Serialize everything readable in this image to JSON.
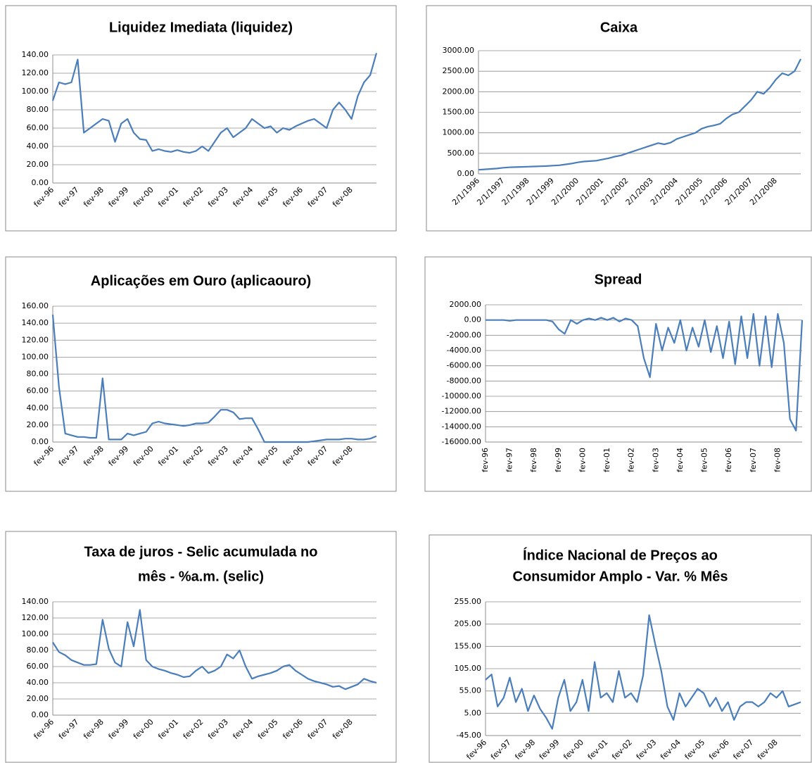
{
  "chart_data": [
    {
      "type": "line",
      "title": [
        "Liquidez Imediata (liquidez)"
      ],
      "categories": [
        "fev-96",
        null,
        null,
        null,
        "fev-97",
        null,
        null,
        null,
        "fev-98",
        null,
        null,
        null,
        "fev-99",
        null,
        null,
        null,
        "fev-00",
        null,
        null,
        null,
        "fev-01",
        null,
        null,
        null,
        "fev-02",
        null,
        null,
        null,
        "fev-03",
        null,
        null,
        null,
        "fev-04",
        null,
        null,
        null,
        "fev-05",
        null,
        null,
        null,
        "fev-06",
        null,
        null,
        null,
        "fev-07",
        null,
        null,
        null,
        "fev-08",
        null,
        null,
        null,
        null
      ],
      "values": [
        90,
        110,
        108,
        110,
        135,
        55,
        60,
        65,
        70,
        68,
        45,
        65,
        70,
        55,
        48,
        47,
        35,
        37,
        35,
        34,
        36,
        34,
        33,
        35,
        40,
        35,
        45,
        55,
        60,
        50,
        55,
        60,
        70,
        65,
        60,
        62,
        55,
        60,
        58,
        62,
        65,
        68,
        70,
        65,
        60,
        80,
        88,
        80,
        70,
        95,
        110,
        118,
        142
      ],
      "color": "#4a7ebb",
      "grid": true,
      "ylim": [
        0,
        140
      ],
      "yticks": [
        {
          "value": 0,
          "label": "0.00"
        },
        {
          "value": 20,
          "label": "20.00"
        },
        {
          "value": 40,
          "label": "40.00"
        },
        {
          "value": 60,
          "label": "60.00"
        },
        {
          "value": 80,
          "label": "80.00"
        },
        {
          "value": 100,
          "label": "100.00"
        },
        {
          "value": 120,
          "label": "120.00"
        },
        {
          "value": 140,
          "label": "140.00"
        }
      ]
    },
    {
      "type": "line",
      "title": [
        "Caixa"
      ],
      "categories": [
        "2/1/1996",
        null,
        null,
        null,
        "2/1/1997",
        null,
        null,
        null,
        "2/1/1998",
        null,
        null,
        null,
        "2/1/1999",
        null,
        null,
        null,
        "2/1/2000",
        null,
        null,
        null,
        "2/1/2001",
        null,
        null,
        null,
        "2/1/2002",
        null,
        null,
        null,
        "2/1/2003",
        null,
        null,
        null,
        "2/1/2004",
        null,
        null,
        null,
        "2/1/2005",
        null,
        null,
        null,
        "2/1/2006",
        null,
        null,
        null,
        "2/1/2007",
        null,
        null,
        null,
        "2/1/2008",
        null,
        null,
        null,
        null
      ],
      "values": [
        100,
        110,
        120,
        130,
        150,
        160,
        165,
        170,
        175,
        180,
        185,
        190,
        200,
        210,
        230,
        250,
        280,
        300,
        310,
        320,
        350,
        380,
        420,
        450,
        500,
        550,
        600,
        650,
        700,
        750,
        720,
        760,
        850,
        900,
        950,
        1000,
        1100,
        1150,
        1180,
        1220,
        1350,
        1450,
        1500,
        1650,
        1800,
        2000,
        1950,
        2100,
        2300,
        2450,
        2400,
        2500,
        2800
      ],
      "color": "#4a7ebb",
      "grid": true,
      "ylim": [
        0,
        3000
      ],
      "yticks": [
        {
          "value": 0,
          "label": "0.00"
        },
        {
          "value": 500,
          "label": "500.00"
        },
        {
          "value": 1000,
          "label": "1000.00"
        },
        {
          "value": 1500,
          "label": "1500.00"
        },
        {
          "value": 2000,
          "label": "2000.00"
        },
        {
          "value": 2500,
          "label": "2500.00"
        },
        {
          "value": 3000,
          "label": "3000.00"
        }
      ]
    },
    {
      "type": "line",
      "title": [
        "Aplicações em Ouro (aplicaouro)"
      ],
      "categories": [
        "fev-96",
        null,
        null,
        null,
        "fev-97",
        null,
        null,
        null,
        "fev-98",
        null,
        null,
        null,
        "fev-99",
        null,
        null,
        null,
        "fev-00",
        null,
        null,
        null,
        "fev-01",
        null,
        null,
        null,
        "fev-02",
        null,
        null,
        null,
        "fev-03",
        null,
        null,
        null,
        "fev-04",
        null,
        null,
        null,
        "fev-05",
        null,
        null,
        null,
        "fev-06",
        null,
        null,
        null,
        "fev-07",
        null,
        null,
        null,
        "fev-08",
        null,
        null,
        null,
        null
      ],
      "values": [
        150,
        65,
        10,
        8,
        6,
        6,
        5,
        5,
        75,
        3,
        3,
        3,
        10,
        8,
        10,
        12,
        22,
        24,
        22,
        21,
        20,
        19,
        20,
        22,
        22,
        23,
        30,
        38,
        38,
        35,
        27,
        28,
        28,
        15,
        0,
        0,
        0,
        0,
        0,
        0,
        0,
        0,
        1,
        2,
        3,
        3,
        3,
        4,
        4,
        3,
        3,
        4,
        7
      ],
      "color": "#4a7ebb",
      "grid": true,
      "ylim": [
        0,
        160
      ],
      "yticks": [
        {
          "value": 0,
          "label": "0.00"
        },
        {
          "value": 20,
          "label": "20.00"
        },
        {
          "value": 40,
          "label": "40.00"
        },
        {
          "value": 60,
          "label": "60.00"
        },
        {
          "value": 80,
          "label": "80.00"
        },
        {
          "value": 100,
          "label": "100.00"
        },
        {
          "value": 120,
          "label": "120.00"
        },
        {
          "value": 140,
          "label": "140.00"
        },
        {
          "value": 160,
          "label": "160.00"
        }
      ]
    },
    {
      "type": "line",
      "title": [
        "Spread"
      ],
      "categories": [
        "fev-96",
        null,
        null,
        null,
        "fev-97",
        null,
        null,
        null,
        "fev-98",
        null,
        null,
        null,
        "fev-99",
        null,
        null,
        null,
        "fev-00",
        null,
        null,
        null,
        "fev-01",
        null,
        null,
        null,
        "fev-02",
        null,
        null,
        null,
        "fev-03",
        null,
        null,
        null,
        "fev-04",
        null,
        null,
        null,
        "fev-05",
        null,
        null,
        null,
        "fev-06",
        null,
        null,
        null,
        "fev-07",
        null,
        null,
        null,
        "fev-08",
        null,
        null,
        null,
        null
      ],
      "values": [
        0,
        0,
        0,
        0,
        -100,
        0,
        0,
        0,
        0,
        0,
        0,
        -200,
        -1200,
        -1800,
        0,
        -500,
        0,
        200,
        0,
        300,
        0,
        300,
        -200,
        200,
        0,
        -800,
        -5000,
        -7500,
        -500,
        -4000,
        -1000,
        -3000,
        0,
        -4000,
        -1000,
        -3500,
        0,
        -4200,
        -800,
        -5000,
        -200,
        -5800,
        500,
        -5000,
        800,
        -6000,
        500,
        -6200,
        800,
        -3000,
        -13000,
        -14500,
        0
      ],
      "color": "#4a7ebb",
      "grid": true,
      "ylim": [
        -16000,
        2000
      ],
      "yticks": [
        {
          "value": -16000,
          "label": "-16000.00"
        },
        {
          "value": -14000,
          "label": "-14000.00"
        },
        {
          "value": -12000,
          "label": "-12000.00"
        },
        {
          "value": -10000,
          "label": "-10000.00"
        },
        {
          "value": -8000,
          "label": "-8000.00"
        },
        {
          "value": -6000,
          "label": "-6000.00"
        },
        {
          "value": -4000,
          "label": "-4000.00"
        },
        {
          "value": -2000,
          "label": "-2000.00"
        },
        {
          "value": 0,
          "label": "0.00"
        },
        {
          "value": 2000,
          "label": "2000.00"
        }
      ]
    },
    {
      "type": "line",
      "title": [
        "Taxa de juros - Selic acumulada no",
        "mês - %a.m. (selic)"
      ],
      "categories": [
        "fev-96",
        null,
        null,
        null,
        "fev-97",
        null,
        null,
        null,
        "fev-98",
        null,
        null,
        null,
        "fev-99",
        null,
        null,
        null,
        "fev-00",
        null,
        null,
        null,
        "fev-01",
        null,
        null,
        null,
        "fev-02",
        null,
        null,
        null,
        "fev-03",
        null,
        null,
        null,
        "fev-04",
        null,
        null,
        null,
        "fev-05",
        null,
        null,
        null,
        "fev-06",
        null,
        null,
        null,
        "fev-07",
        null,
        null,
        null,
        "fev-08",
        null,
        null,
        null,
        null
      ],
      "values": [
        90,
        78,
        74,
        68,
        65,
        62,
        62,
        63,
        118,
        82,
        65,
        60,
        115,
        85,
        130,
        68,
        60,
        57,
        55,
        52,
        50,
        47,
        48,
        55,
        60,
        52,
        55,
        60,
        75,
        70,
        80,
        60,
        45,
        48,
        50,
        52,
        55,
        60,
        62,
        55,
        50,
        45,
        42,
        40,
        38,
        35,
        36,
        32,
        35,
        38,
        45,
        42,
        40
      ],
      "color": "#4a7ebb",
      "grid": true,
      "ylim": [
        0,
        140
      ],
      "yticks": [
        {
          "value": 0,
          "label": "0.00"
        },
        {
          "value": 20,
          "label": "20.00"
        },
        {
          "value": 40,
          "label": "40.00"
        },
        {
          "value": 60,
          "label": "60.00"
        },
        {
          "value": 80,
          "label": "80.00"
        },
        {
          "value": 100,
          "label": "100.00"
        },
        {
          "value": 120,
          "label": "120.00"
        },
        {
          "value": 140,
          "label": "140.00"
        }
      ]
    },
    {
      "type": "line",
      "title": [
        "Índice Nacional de Preços ao",
        "Consumidor Amplo - Var. % Mês"
      ],
      "categories": [
        "fev-96",
        null,
        null,
        null,
        "fev-97",
        null,
        null,
        null,
        "fev-98",
        null,
        null,
        null,
        "fev-99",
        null,
        null,
        null,
        "fev-00",
        null,
        null,
        null,
        "fev-01",
        null,
        null,
        null,
        "fev-02",
        null,
        null,
        null,
        "fev-03",
        null,
        null,
        null,
        "fev-04",
        null,
        null,
        null,
        "fev-05",
        null,
        null,
        null,
        "fev-06",
        null,
        null,
        null,
        "fev-07",
        null,
        null,
        null,
        "fev-08",
        null,
        null,
        null,
        null
      ],
      "values": [
        80,
        92,
        20,
        40,
        85,
        30,
        60,
        10,
        45,
        15,
        -5,
        -30,
        40,
        80,
        10,
        30,
        80,
        10,
        120,
        40,
        50,
        30,
        100,
        40,
        50,
        30,
        90,
        225,
        160,
        100,
        20,
        -10,
        50,
        20,
        40,
        60,
        50,
        20,
        40,
        10,
        30,
        -10,
        20,
        30,
        30,
        20,
        30,
        50,
        40,
        55,
        20,
        25,
        30
      ],
      "color": "#4a7ebb",
      "grid": true,
      "ylim": [
        -45,
        255
      ],
      "yticks": [
        {
          "value": -45,
          "label": "-45.00"
        },
        {
          "value": 5,
          "label": "5.00"
        },
        {
          "value": 55,
          "label": "55.00"
        },
        {
          "value": 105,
          "label": "105.00"
        },
        {
          "value": 155,
          "label": "155.00"
        },
        {
          "value": 205,
          "label": "205.00"
        },
        {
          "value": 255,
          "label": "255.00"
        }
      ]
    }
  ]
}
